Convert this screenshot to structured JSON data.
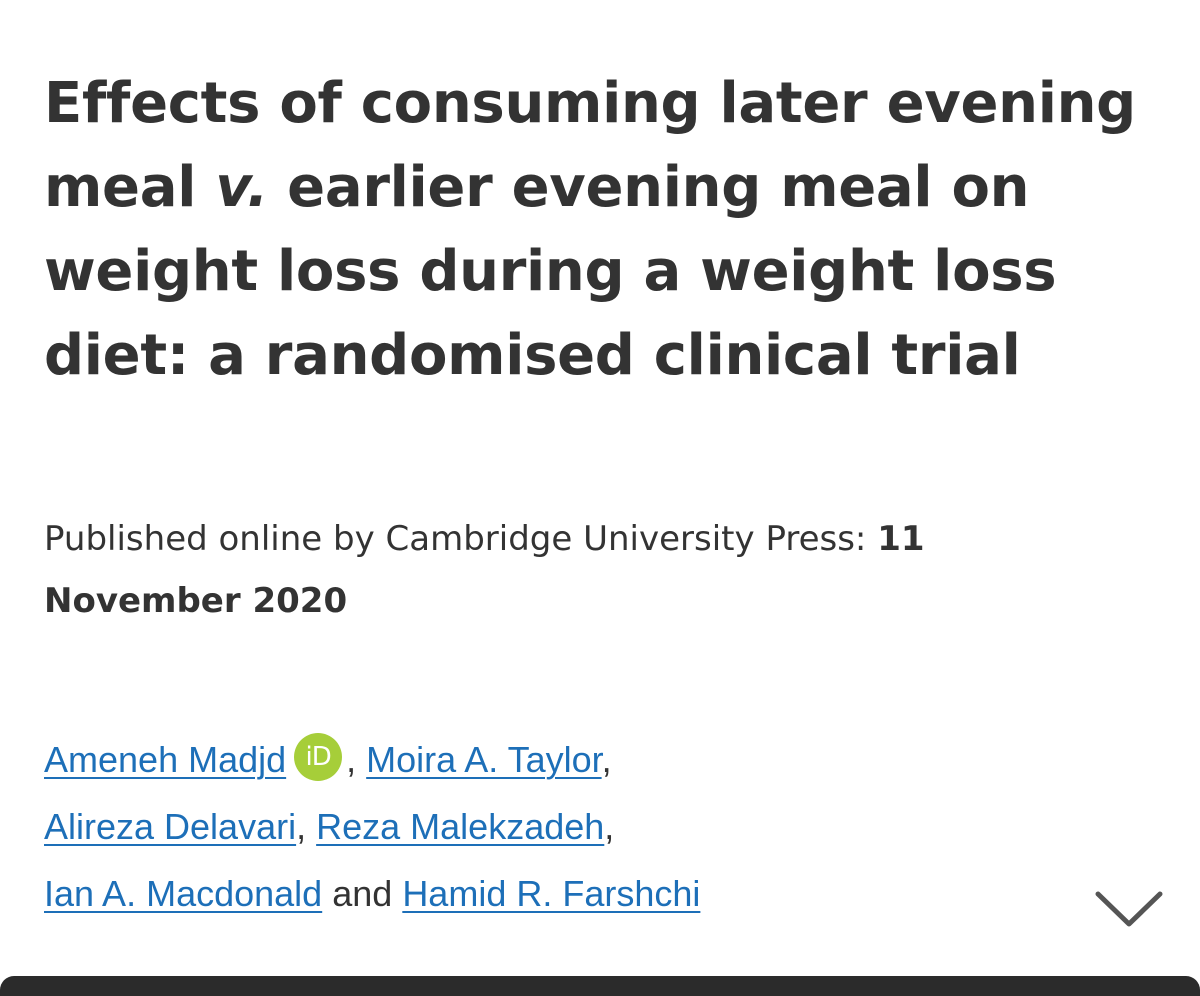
{
  "article": {
    "title_part1": "Effects of consuming later evening meal ",
    "title_italic": "v.",
    "title_part2": " earlier evening meal on weight loss during a weight loss diet: a randomised clinical trial"
  },
  "publication": {
    "label": "Published online by Cambridge University Press: ",
    "date": "11 November 2020"
  },
  "authors": {
    "list": [
      "Ameneh Madjd",
      "Moira A. Taylor",
      "Alireza Delavari",
      "Reza Malekzadeh",
      "Ian A. Macdonald",
      "Hamid R. Farshchi"
    ],
    "separator_comma": ",",
    "conjunction": "and",
    "orcid_badge": "iD"
  },
  "icons": {
    "orcid": "orcid-icon",
    "expand": "chevron-down-icon"
  },
  "colors": {
    "text": "#333333",
    "link": "#1d6fb8",
    "orcid_green": "#a6ce39",
    "bottom_bar": "#2b2b2b"
  }
}
